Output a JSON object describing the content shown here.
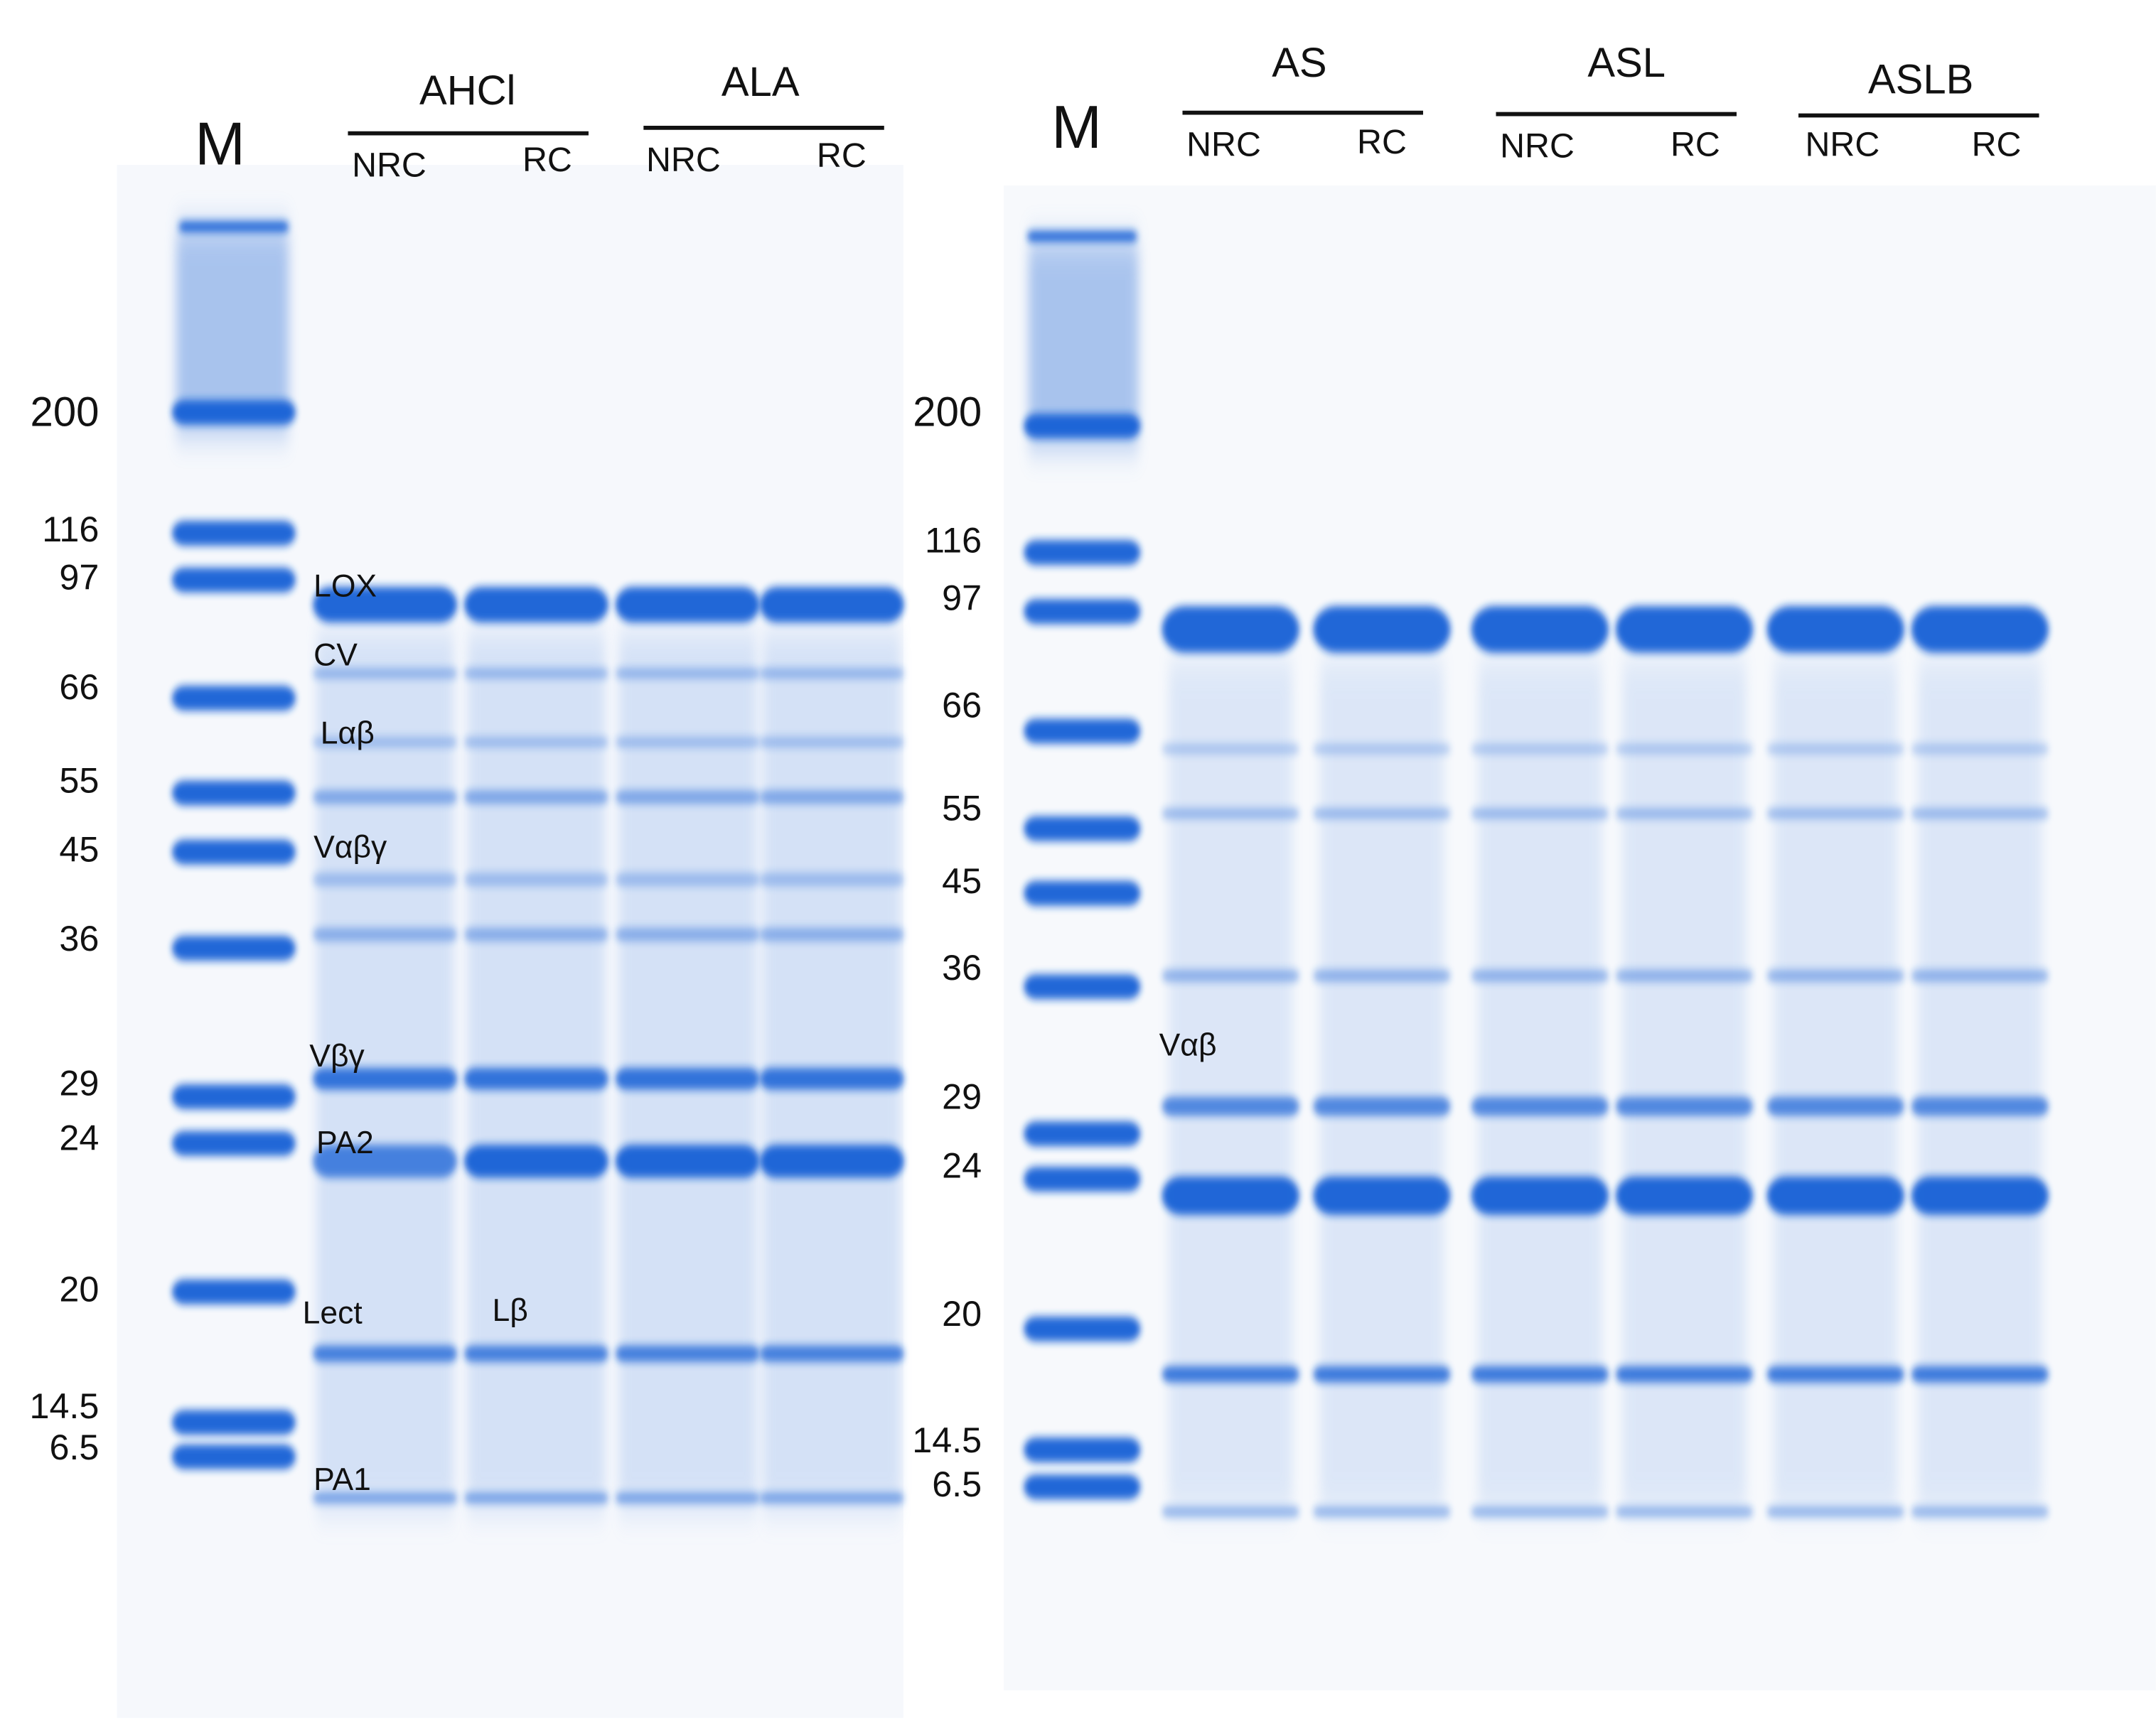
{
  "left_gel": {
    "marker_label": "M",
    "groups": [
      {
        "name": "AHCl",
        "lanes": [
          "NRC",
          "RC"
        ]
      },
      {
        "name": "ALA",
        "lanes": [
          "NRC",
          "RC"
        ]
      }
    ],
    "mw_labels": [
      "200",
      "116",
      "97",
      "66",
      "55",
      "45",
      "36",
      "29",
      "24",
      "20",
      "14.5",
      "6.5"
    ],
    "band_labels": [
      "LOX",
      "CV",
      "Lαβ",
      "Vαβγ",
      "Vβγ",
      "PA2",
      "Lect",
      "Lβ",
      "PA1"
    ]
  },
  "right_gel": {
    "marker_label": "M",
    "groups": [
      {
        "name": "AS",
        "lanes": [
          "NRC",
          "RC"
        ]
      },
      {
        "name": "ASL",
        "lanes": [
          "NRC",
          "RC"
        ]
      },
      {
        "name": "ASLB",
        "lanes": [
          "NRC",
          "RC"
        ]
      }
    ],
    "mw_labels": [
      "200",
      "116",
      "97",
      "66",
      "55",
      "45",
      "36",
      "29",
      "24",
      "20",
      "14.5",
      "6.5"
    ],
    "band_labels": [
      "Vαβ"
    ]
  }
}
